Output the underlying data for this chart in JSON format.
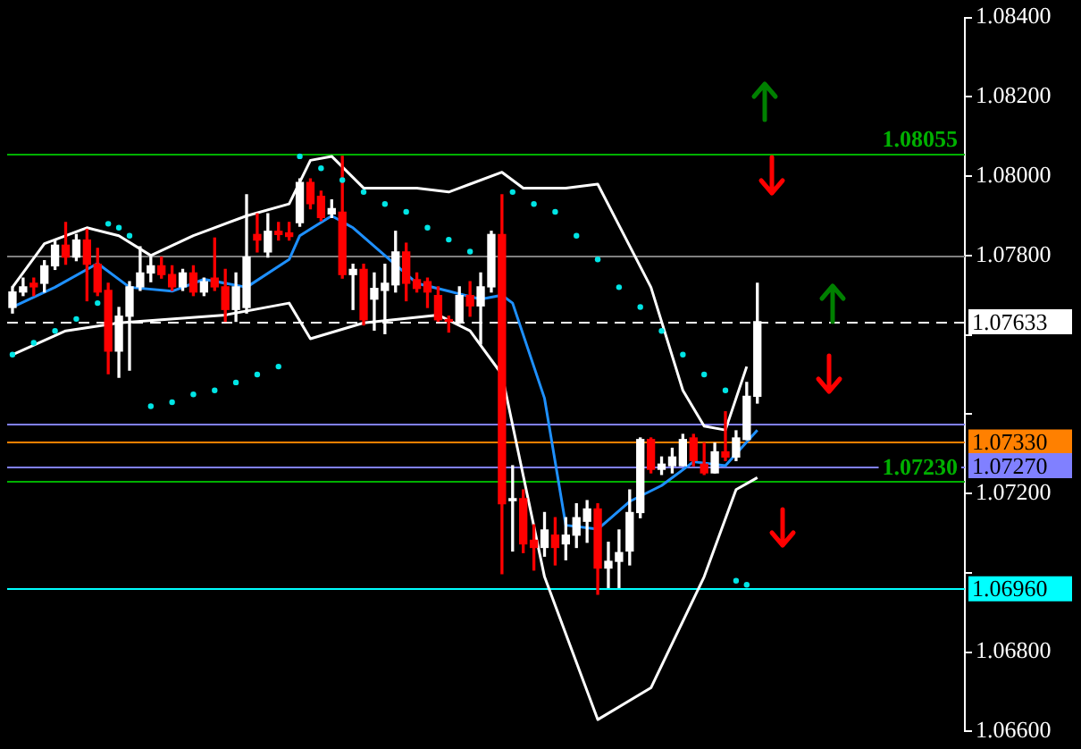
{
  "chart_data": {
    "type": "candlestick",
    "categories": [
      null,
      null,
      null,
      null,
      null,
      null,
      null,
      null,
      null,
      null,
      null,
      null,
      null,
      null,
      null,
      null,
      null,
      null,
      null,
      null,
      null,
      null,
      null,
      null,
      null,
      null,
      null,
      null,
      null,
      null,
      null,
      null,
      null,
      null,
      null,
      null,
      null,
      null,
      null,
      null,
      null,
      null,
      null,
      null,
      null,
      null,
      null,
      null,
      null,
      null,
      null,
      null,
      null,
      null,
      null,
      null,
      null,
      null,
      null,
      null,
      null,
      null,
      null,
      null,
      null,
      null,
      null,
      null,
      null,
      null,
      null,
      null,
      null,
      null,
      null,
      null,
      null,
      null,
      null,
      null,
      null,
      null,
      null,
      null,
      null,
      null,
      null,
      null,
      null,
      null
    ],
    "ohlc": [
      [
        1.07669,
        1.07721,
        1.07655,
        1.07708
      ],
      [
        1.07708,
        1.07743,
        1.07699,
        1.07721
      ],
      [
        1.0773,
        1.07743,
        1.07699,
        1.07721
      ],
      [
        1.0773,
        1.07787,
        1.07708,
        1.07774
      ],
      [
        1.07774,
        1.07839,
        1.07765,
        1.07826
      ],
      [
        1.07826,
        1.07883,
        1.07778,
        1.07796
      ],
      [
        1.07796,
        1.07853,
        1.07787,
        1.07839
      ],
      [
        1.07839,
        1.07866,
        1.07686,
        1.07778
      ],
      [
        1.07778,
        1.07818,
        1.07699,
        1.07708
      ],
      [
        1.07712,
        1.0773,
        1.07502,
        1.07559
      ],
      [
        1.07559,
        1.07669,
        1.07493,
        1.07647
      ],
      [
        1.07647,
        1.07734,
        1.07511,
        1.07721
      ],
      [
        1.07721,
        1.07822,
        1.07712,
        1.07756
      ],
      [
        1.07756,
        1.07796,
        1.07734,
        1.07774
      ],
      [
        1.07774,
        1.07796,
        1.07743,
        1.07752
      ],
      [
        1.07752,
        1.07774,
        1.07712,
        1.07721
      ],
      [
        1.07721,
        1.07765,
        1.07712,
        1.07756
      ],
      [
        1.07756,
        1.07774,
        1.07699,
        1.07708
      ],
      [
        1.07708,
        1.07743,
        1.07699,
        1.07734
      ],
      [
        1.07743,
        1.07844,
        1.07712,
        1.07721
      ],
      [
        1.07721,
        1.07765,
        1.07634,
        1.07664
      ],
      [
        1.07664,
        1.07756,
        1.07634,
        1.07721
      ],
      [
        1.07669,
        1.07953,
        1.07655,
        1.07796
      ],
      [
        1.07853,
        1.07905,
        1.07809,
        1.07839
      ],
      [
        1.07809,
        1.07905,
        1.07796,
        1.07861
      ],
      [
        1.07861,
        1.07883,
        1.07839,
        1.07853
      ],
      [
        1.07857,
        1.07883,
        1.07839,
        1.07848
      ],
      [
        1.07883,
        1.07993,
        1.07874,
        1.07984
      ],
      [
        1.07984,
        1.07993,
        1.07918,
        1.07931
      ],
      [
        1.07949,
        1.07962,
        1.07888,
        1.07896
      ],
      [
        1.07905,
        1.0794,
        1.07896,
        1.07918
      ],
      [
        1.07909,
        1.0805,
        1.07743,
        1.07752
      ],
      [
        1.07752,
        1.07778,
        1.07664,
        1.07765
      ],
      [
        1.07765,
        1.07778,
        1.07625,
        1.07638
      ],
      [
        1.0769,
        1.07756,
        1.07612,
        1.07717
      ],
      [
        1.07712,
        1.07778,
        1.07603,
        1.0773
      ],
      [
        1.07726,
        1.07861,
        1.07708,
        1.07809
      ],
      [
        1.07809,
        1.07831,
        1.07686,
        1.0773
      ],
      [
        1.07739,
        1.07756,
        1.07708,
        1.07717
      ],
      [
        1.07734,
        1.07743,
        1.07669,
        1.07708
      ],
      [
        1.07699,
        1.07721,
        1.07634,
        1.07638
      ],
      [
        1.07638,
        1.07647,
        1.07607,
        1.07634
      ],
      [
        1.07634,
        1.07721,
        1.07629,
        1.07699
      ],
      [
        1.07699,
        1.07734,
        1.07647,
        1.07673
      ],
      [
        1.07673,
        1.07756,
        1.07577,
        1.07721
      ],
      [
        1.07721,
        1.07861,
        1.07708,
        1.07853
      ],
      [
        1.07853,
        1.07953,
        1.06998,
        1.07174
      ],
      [
        1.07182,
        1.0727,
        1.07055,
        1.07187
      ],
      [
        1.07187,
        1.07209,
        1.07051,
        1.07073
      ],
      [
        1.07082,
        1.07121,
        1.07007,
        1.07064
      ],
      [
        1.07064,
        1.07152,
        1.07042,
        1.07108
      ],
      [
        1.07095,
        1.07139,
        1.0702,
        1.07064
      ],
      [
        1.07073,
        1.07139,
        1.07033,
        1.07095
      ],
      [
        1.07095,
        1.07174,
        1.07064,
        1.07139
      ],
      [
        1.0713,
        1.07182,
        1.07077,
        1.07161
      ],
      [
        1.07161,
        1.07174,
        1.06946,
        1.07012
      ],
      [
        1.07012,
        1.07077,
        1.06963,
        1.07029
      ],
      [
        1.07029,
        1.07108,
        1.06963,
        1.07051
      ],
      [
        1.07055,
        1.07209,
        1.0702,
        1.07152
      ],
      [
        1.07152,
        1.0734,
        1.07139,
        1.07336
      ],
      [
        1.07336,
        1.0734,
        1.07252,
        1.07261
      ],
      [
        1.07261,
        1.07292,
        1.07248,
        1.07274
      ],
      [
        1.0727,
        1.07314,
        1.07252,
        1.07292
      ],
      [
        1.0727,
        1.07349,
        1.0727,
        1.07336
      ],
      [
        1.0734,
        1.07349,
        1.0727,
        1.07283
      ],
      [
        1.07274,
        1.07327,
        1.07248,
        1.07252
      ],
      [
        1.07252,
        1.07327,
        1.07252,
        1.07305
      ],
      [
        1.07305,
        1.07406,
        1.07283,
        1.07292
      ],
      [
        1.07292,
        1.07358,
        1.07283,
        1.0734
      ],
      [
        1.07336,
        1.0748,
        1.07336,
        1.07445
      ],
      [
        1.07445,
        1.0773,
        1.07428,
        1.07633
      ],
      null,
      null,
      null,
      null,
      null,
      null,
      null,
      null,
      null,
      null,
      null,
      null,
      null,
      null,
      null,
      null,
      null,
      null,
      null
    ],
    "colors": [
      "#ffffff",
      "#ffffff",
      "#ff0000",
      "#ffffff",
      "#ffffff",
      "#ff0000",
      "#ffffff",
      "#ff0000",
      "#ff0000",
      "#ff0000",
      "#ffffff",
      "#ffffff",
      "#ffffff",
      "#ffffff",
      "#ff0000",
      "#ff0000",
      "#ffffff",
      "#ff0000",
      "#ffffff",
      "#ff0000",
      "#ff0000",
      "#ffffff",
      "#ffffff",
      "#ff0000",
      "#ffffff",
      "#ff0000",
      "#ff0000",
      "#ffffff",
      "#ff0000",
      "#ff0000",
      "#ffffff",
      "#ff0000",
      "#ffffff",
      "#ff0000",
      "#ffffff",
      "#ffffff",
      "#ffffff",
      "#ff0000",
      "#ff0000",
      "#ff0000",
      "#ff0000",
      "#ff0000",
      "#ffffff",
      "#ff0000",
      "#ffffff",
      "#ffffff",
      "#ff0000",
      "#ffffff",
      "#ff0000",
      "#ff0000",
      "#ffffff",
      "#ff0000",
      "#ffffff",
      "#ffffff",
      "#ffffff",
      "#ff0000",
      "#ffffff",
      "#ffffff",
      "#ffffff",
      "#ffffff",
      "#ff0000",
      "#ffffff",
      "#ffffff",
      "#ffffff",
      "#ff0000",
      "#ff0000",
      "#ffffff",
      "#ff0000",
      "#ffffff",
      "#ffffff",
      "#ffffff",
      null,
      null,
      null,
      null,
      null,
      null,
      null,
      null,
      null,
      null,
      null,
      null,
      null,
      null,
      null,
      null,
      null,
      null,
      null
    ],
    "series": [
      {
        "type": "line",
        "color": "#ffffff",
        "values": [
          1.0772,
          null,
          null,
          1.0783,
          null,
          null,
          null,
          1.0787,
          null,
          null,
          1.0785,
          null,
          null,
          1.078,
          null,
          null,
          null,
          1.0785,
          null,
          null,
          null,
          null,
          1.079,
          null,
          null,
          null,
          1.0793,
          null,
          1.0804,
          null,
          1.0805,
          null,
          null,
          1.0797,
          null,
          null,
          null,
          null,
          1.0797,
          null,
          null,
          1.0796,
          null,
          1.0798,
          null,
          null,
          1.0801,
          null,
          1.0797,
          null,
          null,
          null,
          1.0797,
          null,
          null,
          1.0798,
          null,
          null,
          null,
          null,
          1.0772,
          null,
          null,
          1.0746,
          null,
          1.0737,
          null,
          1.0736,
          null,
          1.0752,
          null,
          null,
          null,
          null,
          null,
          null,
          null,
          null,
          null,
          null,
          null,
          null,
          null,
          null,
          null,
          null,
          null,
          null,
          null,
          null
        ]
      },
      {
        "type": "line",
        "color": "#ffffff",
        "values": [
          1.0755,
          null,
          null,
          null,
          null,
          1.0761,
          null,
          null,
          null,
          null,
          1.0763,
          null,
          null,
          null,
          null,
          null,
          null,
          null,
          null,
          null,
          1.0765,
          null,
          null,
          null,
          null,
          null,
          1.0768,
          null,
          1.0759,
          null,
          null,
          null,
          null,
          1.0763,
          null,
          null,
          null,
          null,
          null,
          null,
          1.0765,
          null,
          null,
          1.0761,
          null,
          null,
          1.075,
          null,
          null,
          null,
          1.0699,
          null,
          null,
          null,
          null,
          1.0663,
          null,
          null,
          null,
          null,
          1.0671,
          null,
          null,
          null,
          null,
          1.0699,
          null,
          null,
          1.0721,
          null,
          1.0724,
          null,
          null,
          null,
          null,
          null,
          null,
          null,
          null,
          null,
          null,
          null,
          null,
          null,
          null,
          null,
          null,
          null,
          null,
          null
        ]
      },
      {
        "type": "line",
        "color": "#1e90ff",
        "values": [
          1.0767,
          null,
          null,
          null,
          1.0772,
          null,
          null,
          null,
          1.0778,
          null,
          null,
          1.0772,
          null,
          null,
          null,
          1.0771,
          null,
          null,
          1.0774,
          null,
          null,
          null,
          1.0772,
          null,
          null,
          null,
          1.0779,
          1.0785,
          null,
          null,
          1.079,
          null,
          1.0787,
          null,
          null,
          1.078,
          null,
          null,
          1.0773,
          null,
          null,
          1.0771,
          null,
          null,
          1.0769,
          null,
          1.077,
          1.0768,
          null,
          null,
          1.0744,
          null,
          1.0712,
          null,
          null,
          1.0711,
          null,
          null,
          1.0718,
          null,
          null,
          1.0722,
          null,
          null,
          1.0728,
          null,
          null,
          1.0727,
          null,
          null,
          1.0736,
          null,
          null,
          null,
          null,
          null,
          null,
          null,
          null,
          null,
          null,
          null,
          null,
          null,
          null,
          null,
          null,
          null,
          null,
          null
        ]
      },
      {
        "type": "scatter",
        "color": "#00e5e5",
        "marker": "circle",
        "values": [
          1.0755,
          null,
          1.0758,
          null,
          1.0761,
          null,
          1.0764,
          null,
          1.0768,
          1.0788,
          1.0787,
          1.0785,
          null,
          1.0742,
          null,
          1.0743,
          null,
          1.0745,
          null,
          1.0746,
          null,
          1.0748,
          null,
          1.075,
          null,
          1.0752,
          null,
          1.0805,
          null,
          1.0802,
          null,
          1.0799,
          null,
          1.0796,
          null,
          1.0793,
          null,
          1.0791,
          null,
          1.0787,
          null,
          1.0784,
          null,
          1.0781,
          null,
          null,
          null,
          1.0796,
          null,
          1.0793,
          null,
          1.0791,
          null,
          1.0785,
          null,
          1.0779,
          null,
          1.0772,
          null,
          1.0767,
          null,
          1.0761,
          null,
          1.0755,
          null,
          1.075,
          null,
          1.0746,
          1.0698,
          1.0697,
          null,
          null,
          null,
          null,
          null,
          null,
          null,
          null,
          null,
          null,
          null,
          null,
          null,
          null,
          null,
          null,
          null,
          null,
          null,
          null
        ]
      }
    ],
    "ylim": [
      1.066,
      1.084
    ],
    "yticks": [
      {
        "value": 1.066,
        "label": "1.06600"
      },
      {
        "value": 1.068,
        "label": "1.06800"
      },
      {
        "value": 1.07,
        "label": null
      },
      {
        "value": 1.072,
        "label": "1.07200"
      },
      {
        "value": 1.074,
        "label": null
      },
      {
        "value": 1.076,
        "label": null
      },
      {
        "value": 1.078,
        "label": "1.07800"
      },
      {
        "value": 1.08,
        "label": "1.08000"
      },
      {
        "value": 1.082,
        "label": "1.08200"
      },
      {
        "value": 1.084,
        "label": "1.08400"
      }
    ],
    "ref_lines": [
      {
        "axis": "y",
        "value": 1.08055,
        "label": "1.08055",
        "color": "#00b000"
      },
      {
        "axis": "y",
        "value": 1.078,
        "label": null,
        "color": "#808080"
      },
      {
        "axis": "y",
        "value": 1.07633,
        "label": "1.07633",
        "color": "#ffffff",
        "line_style": "dashed"
      },
      {
        "axis": "y",
        "value": 1.07375,
        "label": null,
        "color": "#8080ff"
      },
      {
        "axis": "y",
        "value": 1.0733,
        "label": "1.07330",
        "color": "#ff8000"
      },
      {
        "axis": "y",
        "value": 1.0727,
        "label": "1.07270",
        "color": "#8080ff"
      },
      {
        "axis": "y",
        "value": 1.0723,
        "label": "1.07230",
        "color": "#00b000"
      },
      {
        "axis": "y",
        "value": 1.0696,
        "label": "1.06960",
        "color": "#00ffff"
      }
    ]
  }
}
